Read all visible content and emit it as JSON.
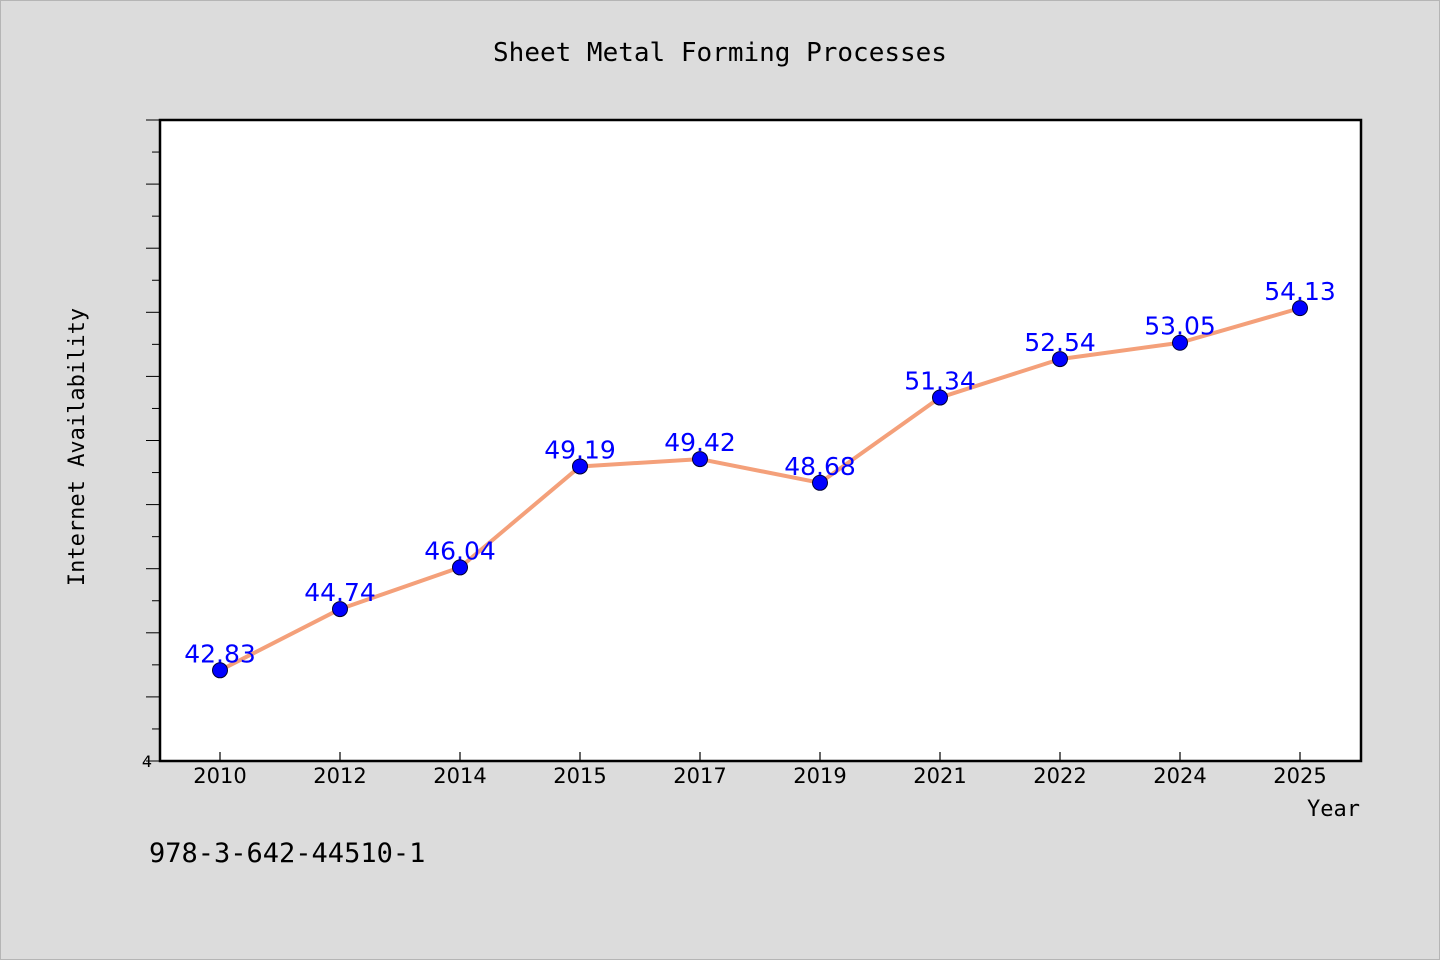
{
  "chart_data": {
    "type": "line",
    "title": "Sheet Metal Forming Processes",
    "xlabel": "Year",
    "ylabel": "Internet Availability",
    "categories": [
      "2010",
      "2012",
      "2014",
      "2015",
      "2017",
      "2019",
      "2021",
      "2022",
      "2024",
      "2025"
    ],
    "series": [
      {
        "values": [
          42.83,
          44.74,
          46.04,
          49.19,
          49.42,
          48.68,
          51.34,
          52.54,
          53.05,
          54.13
        ],
        "labels": [
          "42.83",
          "44.74",
          "46.04",
          "49.19",
          "49.42",
          "48.68",
          "51.34",
          "52.54",
          "53.05",
          "54.13"
        ],
        "line_color": "#f4a07a",
        "marker_color": "#0000ff"
      }
    ],
    "ylim": [
      40,
      60
    ],
    "y_tick_labels": [
      {
        "value": 40,
        "label": "4"
      }
    ],
    "grid": false,
    "legend": "none"
  },
  "footnote": "978-3-642-44510-1"
}
